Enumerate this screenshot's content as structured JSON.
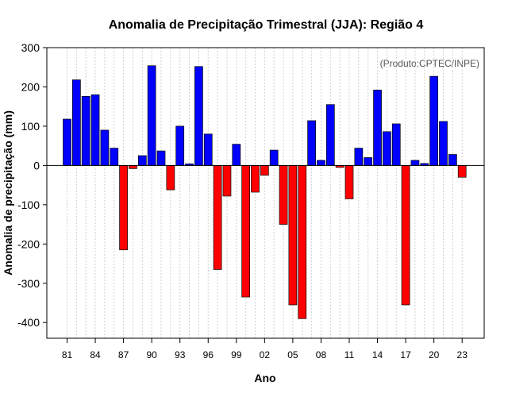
{
  "chart_data": {
    "type": "bar",
    "title": "Anomalia de Precipitação Trimestral (JJA): Região 4",
    "xlabel": "Ano",
    "ylabel": "Anomalia de precipitação (mm)",
    "credit": "(Produto:CPTEC/INPE)",
    "ylim": [
      -440,
      300
    ],
    "yticks": [
      300,
      200,
      100,
      0,
      -100,
      -200,
      -300,
      -400
    ],
    "grid": "vertical dotted",
    "colors": {
      "positive": "#0000ff",
      "negative": "#ff0000"
    },
    "categories": [
      "1981",
      "1982",
      "1983",
      "1984",
      "1985",
      "1986",
      "1987",
      "1988",
      "1989",
      "1990",
      "1991",
      "1992",
      "1993",
      "1994",
      "1995",
      "1996",
      "1997",
      "1998",
      "1999",
      "2000",
      "2001",
      "2002",
      "2003",
      "2004",
      "2005",
      "2006",
      "2007",
      "2008",
      "2009",
      "2010",
      "2011",
      "2012",
      "2013",
      "2014",
      "2015",
      "2016",
      "2017",
      "2018",
      "2019",
      "2020",
      "2021",
      "2022",
      "2023"
    ],
    "xtick_labels": [
      "81",
      "84",
      "87",
      "90",
      "93",
      "96",
      "99",
      "02",
      "05",
      "08",
      "11",
      "14",
      "17",
      "20",
      "23"
    ],
    "xtick_indices": [
      0,
      3,
      6,
      9,
      12,
      15,
      18,
      21,
      24,
      27,
      30,
      33,
      36,
      39,
      42
    ],
    "values": [
      118,
      218,
      176,
      180,
      90,
      44,
      -215,
      -8,
      25,
      254,
      37,
      -62,
      100,
      4,
      252,
      80,
      -265,
      -78,
      54,
      -335,
      -68,
      -25,
      39,
      -150,
      -355,
      -390,
      114,
      13,
      155,
      -5,
      -85,
      44,
      20,
      192,
      86,
      106,
      -355,
      13,
      5,
      227,
      112,
      28,
      -30
    ]
  }
}
